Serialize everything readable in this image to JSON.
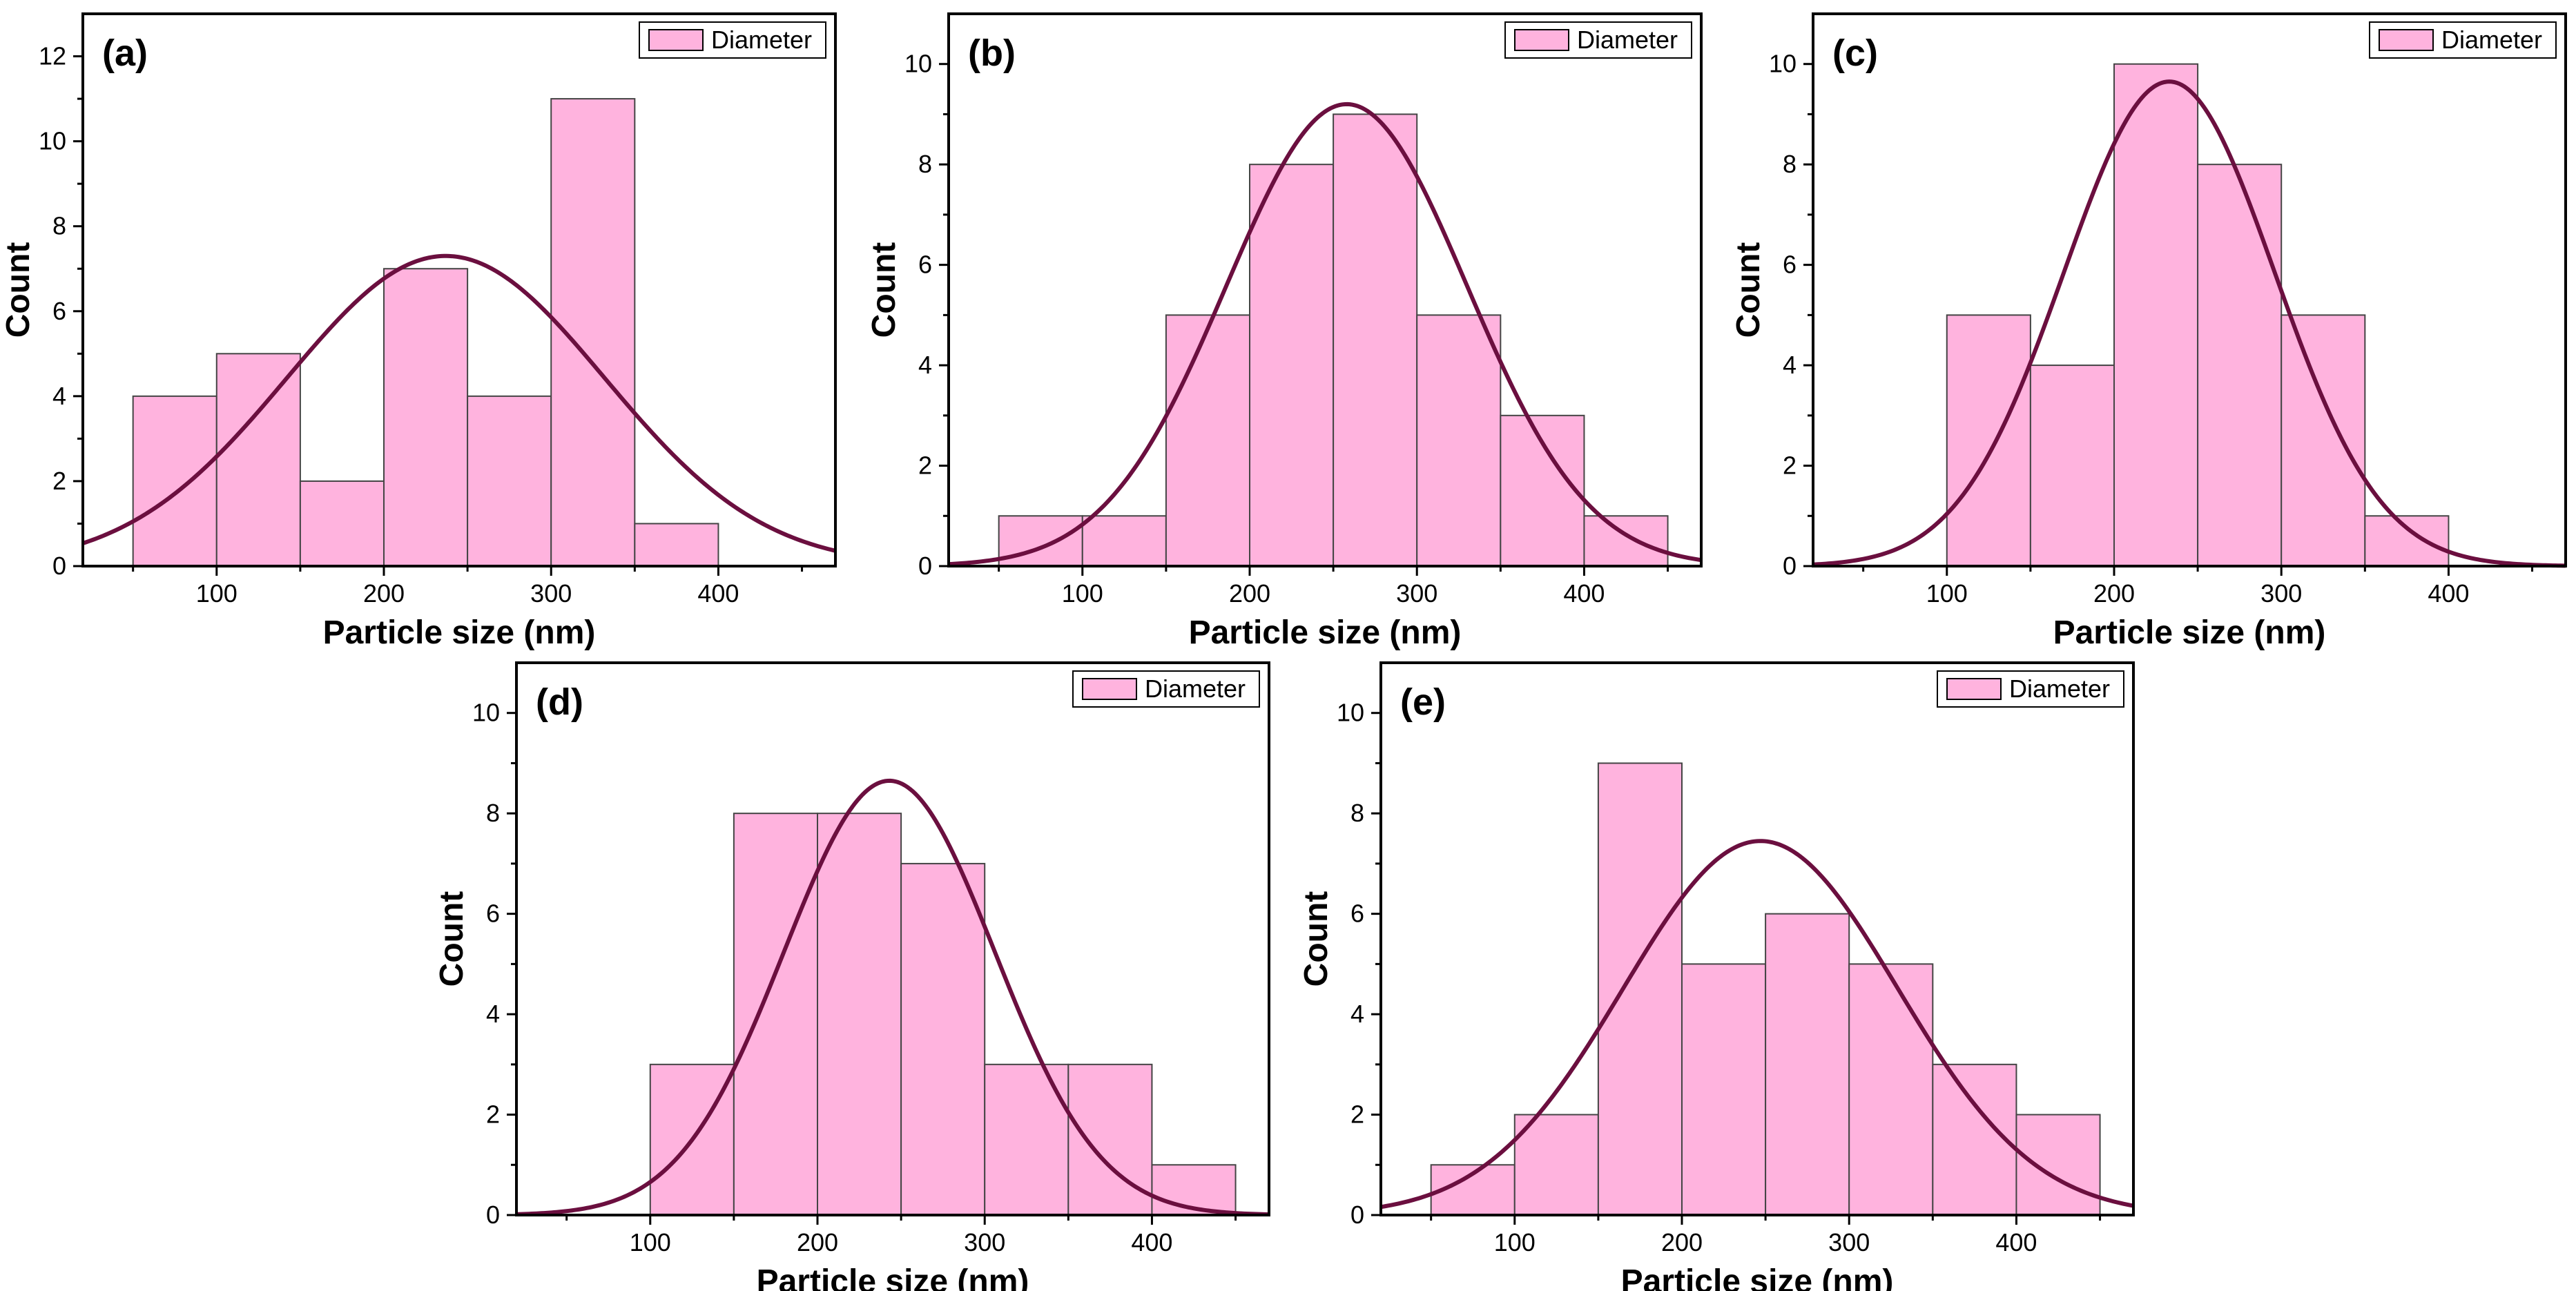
{
  "figure": {
    "panel_count": 5
  },
  "chart_data": [
    {
      "type": "bar",
      "panel_label": "(a)",
      "xlabel": "Particle size (nm)",
      "ylabel": "Count",
      "legend": "Diameter",
      "legend_position": "top-right",
      "xlim": [
        20,
        470
      ],
      "ylim": [
        0,
        13
      ],
      "xticks": [
        100,
        200,
        300,
        400
      ],
      "yticks": [
        0,
        2,
        4,
        6,
        8,
        10,
        12
      ],
      "bin_width": 50,
      "bin_starts": [
        50,
        100,
        150,
        200,
        250,
        300,
        350
      ],
      "values": [
        4,
        5,
        2,
        7,
        4,
        11,
        1
      ],
      "fit": {
        "mean": 237,
        "sd": 95,
        "peak": 7.3
      },
      "colors": {
        "bar": "#ffb3de",
        "edge": "#444444",
        "curve": "#6b0f3f"
      }
    },
    {
      "type": "bar",
      "panel_label": "(b)",
      "xlabel": "Particle size (nm)",
      "ylabel": "Count",
      "legend": "Diameter",
      "legend_position": "top-right",
      "xlim": [
        20,
        470
      ],
      "ylim": [
        0,
        11
      ],
      "xticks": [
        100,
        200,
        300,
        400
      ],
      "yticks": [
        0,
        2,
        4,
        6,
        8,
        10
      ],
      "bin_width": 50,
      "bin_starts": [
        50,
        100,
        150,
        200,
        250,
        300,
        350,
        400
      ],
      "values": [
        1,
        1,
        5,
        8,
        9,
        5,
        3,
        1
      ],
      "fit": {
        "mean": 258,
        "sd": 72,
        "peak": 9.2
      },
      "colors": {
        "bar": "#ffb3de",
        "edge": "#444444",
        "curve": "#6b0f3f"
      }
    },
    {
      "type": "bar",
      "panel_label": "(c)",
      "xlabel": "Particle size (nm)",
      "ylabel": "Count",
      "legend": "Diameter",
      "legend_position": "top-right",
      "xlim": [
        20,
        470
      ],
      "ylim": [
        0,
        11
      ],
      "xticks": [
        100,
        200,
        300,
        400
      ],
      "yticks": [
        0,
        2,
        4,
        6,
        8,
        10
      ],
      "bin_width": 50,
      "bin_starts": [
        100,
        150,
        200,
        250,
        300,
        350
      ],
      "values": [
        5,
        4,
        10,
        8,
        5,
        1
      ],
      "fit": {
        "mean": 233,
        "sd": 63,
        "peak": 9.65
      },
      "colors": {
        "bar": "#ffb3de",
        "edge": "#444444",
        "curve": "#6b0f3f"
      }
    },
    {
      "type": "bar",
      "panel_label": "(d)",
      "xlabel": "Particle size (nm)",
      "ylabel": "Count",
      "legend": "Diameter",
      "legend_position": "top-right",
      "xlim": [
        20,
        470
      ],
      "ylim": [
        0,
        11
      ],
      "xticks": [
        100,
        200,
        300,
        400
      ],
      "yticks": [
        0,
        2,
        4,
        6,
        8,
        10
      ],
      "bin_width": 50,
      "bin_starts": [
        100,
        150,
        200,
        250,
        300,
        350,
        400
      ],
      "values": [
        3,
        8,
        8,
        7,
        3,
        3,
        1
      ],
      "fit": {
        "mean": 243,
        "sd": 63,
        "peak": 8.65
      },
      "colors": {
        "bar": "#ffb3de",
        "edge": "#444444",
        "curve": "#6b0f3f"
      }
    },
    {
      "type": "bar",
      "panel_label": "(e)",
      "xlabel": "Particle size (nm)",
      "ylabel": "Count",
      "legend": "Diameter",
      "legend_position": "top-right",
      "xlim": [
        20,
        470
      ],
      "ylim": [
        0,
        11
      ],
      "xticks": [
        100,
        200,
        300,
        400
      ],
      "yticks": [
        0,
        2,
        4,
        6,
        8,
        10
      ],
      "bin_width": 50,
      "bin_starts": [
        50,
        100,
        150,
        200,
        250,
        300,
        350,
        400
      ],
      "values": [
        1,
        2,
        9,
        5,
        6,
        5,
        3,
        2
      ],
      "fit": {
        "mean": 247,
        "sd": 82,
        "peak": 7.45
      },
      "colors": {
        "bar": "#ffb3de",
        "edge": "#444444",
        "curve": "#6b0f3f"
      }
    }
  ]
}
